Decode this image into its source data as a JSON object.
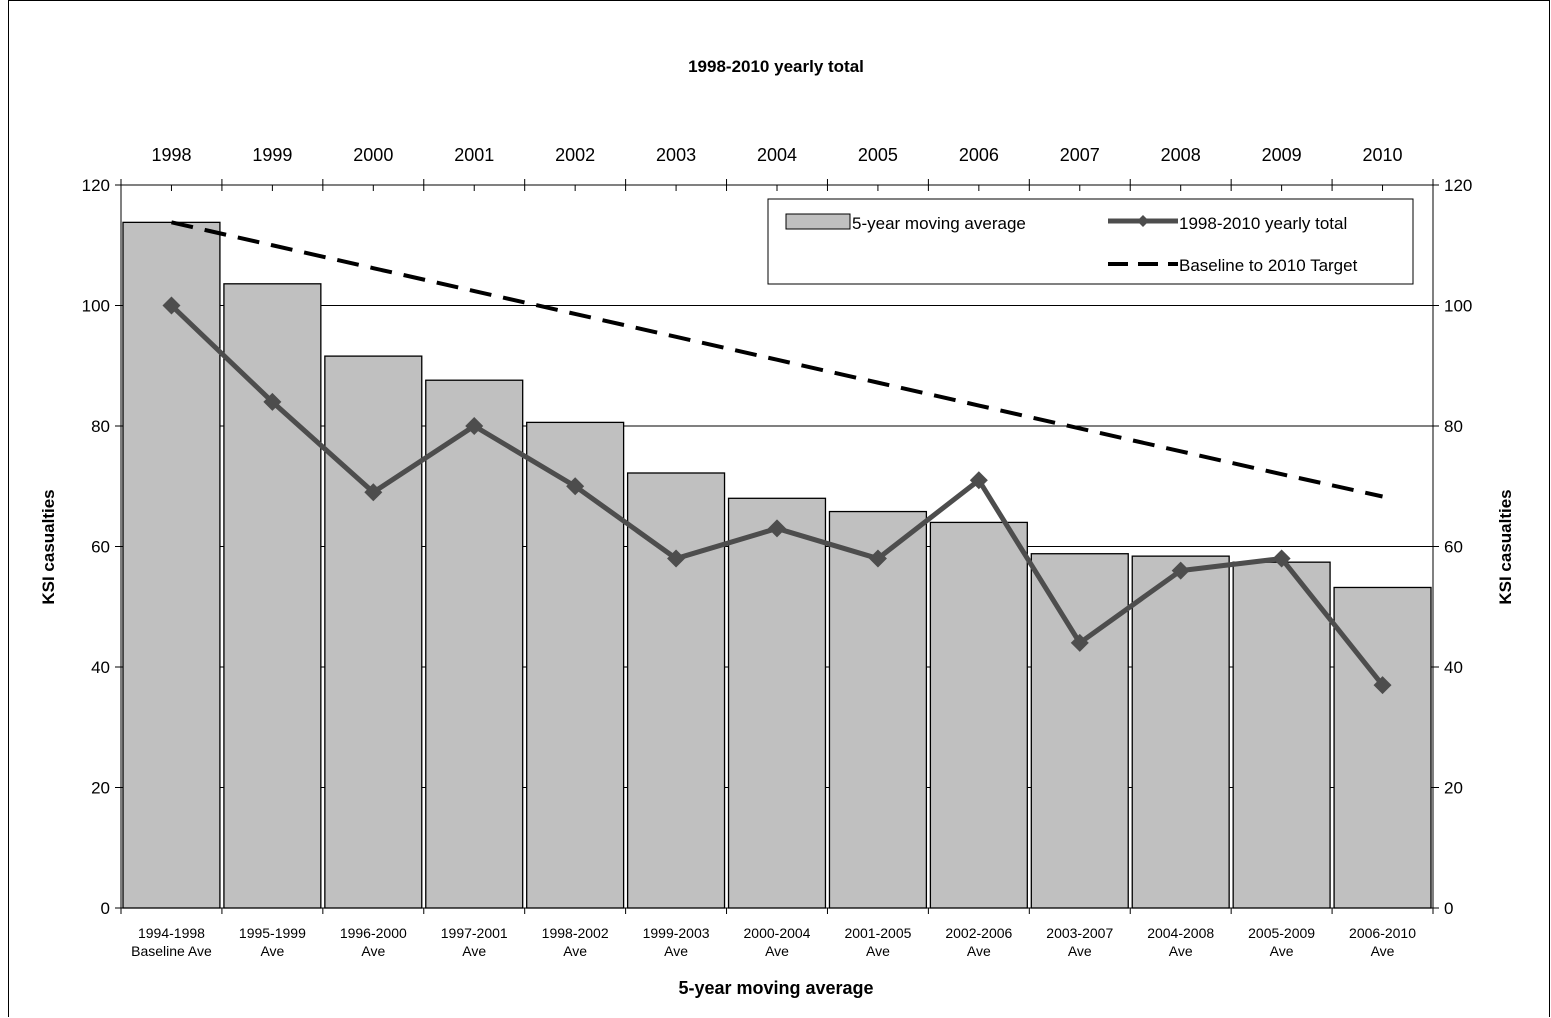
{
  "chart_data": {
    "type": "bar",
    "title": "1998-2010 yearly total",
    "xlabel": "5-year moving average",
    "ylabel": "KSI casualties",
    "ylabel_right": "KSI casualties",
    "ylim": [
      0,
      120
    ],
    "yticks": [
      0,
      20,
      40,
      60,
      80,
      100,
      120
    ],
    "grid": true,
    "legend_position": "top-right",
    "categories": [
      [
        "1994-1998",
        "Baseline Ave"
      ],
      [
        "1995-1999",
        "Ave"
      ],
      [
        "1996-2000",
        "Ave"
      ],
      [
        "1997-2001",
        "Ave"
      ],
      [
        "1998-2002",
        "Ave"
      ],
      [
        "1999-2003",
        "Ave"
      ],
      [
        "2000-2004",
        "Ave"
      ],
      [
        "2001-2005",
        "Ave"
      ],
      [
        "2002-2006",
        "Ave"
      ],
      [
        "2003-2007",
        "Ave"
      ],
      [
        "2004-2008",
        "Ave"
      ],
      [
        "2005-2009",
        "Ave"
      ],
      [
        "2006-2010",
        "Ave"
      ]
    ],
    "top_categories": [
      "1998",
      "1999",
      "2000",
      "2001",
      "2002",
      "2003",
      "2004",
      "2005",
      "2006",
      "2007",
      "2008",
      "2009",
      "2010"
    ],
    "series": [
      {
        "name": "5-year moving average",
        "type": "bar",
        "color": "#c0c0c0",
        "values": [
          113.8,
          103.6,
          91.6,
          87.6,
          80.6,
          72.2,
          68.0,
          65.8,
          64.0,
          58.8,
          58.4,
          57.4,
          53.2
        ]
      },
      {
        "name": "1998-2010 yearly total",
        "type": "line",
        "color": "#4d4d4d",
        "marker": "diamond",
        "values": [
          100,
          84,
          69,
          80,
          70,
          58,
          63,
          58,
          71,
          44,
          56,
          58,
          37
        ]
      },
      {
        "name": "Baseline to 2010 Target",
        "type": "line",
        "color": "#000000",
        "dash": true,
        "values": [
          113.8,
          110.0,
          106.2,
          102.4,
          98.6,
          94.8,
          91.0,
          87.2,
          83.4,
          79.6,
          75.8,
          72.0,
          68.3
        ]
      }
    ]
  }
}
